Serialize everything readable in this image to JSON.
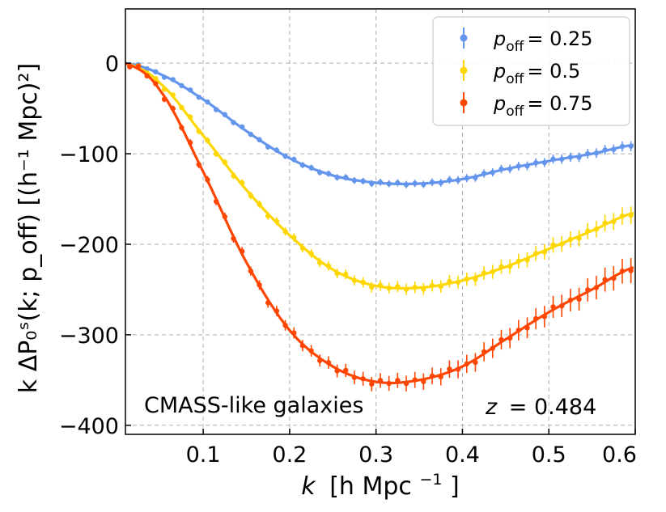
{
  "chart_data": {
    "type": "line",
    "xlabel_main": "k",
    "xlabel_unit": "[h Mpc",
    "xlabel_unit_sup": "−1",
    "xlabel_unit_end": "]",
    "ylabel": "k ΔP₀ˢ(k; p_off) [(h⁻¹ Mpc)²]",
    "xlim": [
      0.01,
      0.6
    ],
    "ylim": [
      -410,
      60
    ],
    "xticks": [
      0.1,
      0.2,
      0.3,
      0.4,
      0.5,
      0.6
    ],
    "xtick_labels": [
      "0.1",
      "0.2",
      "0.3",
      "0.4",
      "0.5",
      "0.6"
    ],
    "yticks": [
      0,
      -100,
      -200,
      -300,
      -400
    ],
    "ytick_labels": [
      "0",
      "−100",
      "−200",
      "−300",
      "−400"
    ],
    "grid": true,
    "legend_position": "top-right",
    "annotations": {
      "sample": "CMASS-like galaxies",
      "redshift_var": "z",
      "redshift_value": "= 0.484"
    },
    "series": [
      {
        "name": "p_off = 0.25",
        "legend_var": "p",
        "legend_sub": "off",
        "legend_value": "= 0.25",
        "color": "#6495ed",
        "x": [
          0.01,
          0.05,
          0.1,
          0.15,
          0.2,
          0.25,
          0.3,
          0.35,
          0.4,
          0.45,
          0.5,
          0.55,
          0.6
        ],
        "values": [
          0,
          -12,
          -40,
          -75,
          -105,
          -124,
          -132,
          -133,
          -128,
          -117,
          -108,
          -100,
          -90
        ]
      },
      {
        "name": "p_off = 0.5",
        "legend_var": "p",
        "legend_sub": "off",
        "legend_value": "= 0.5",
        "color": "#ffd700",
        "x": [
          0.01,
          0.05,
          0.1,
          0.15,
          0.2,
          0.25,
          0.3,
          0.35,
          0.4,
          0.45,
          0.5,
          0.55,
          0.6
        ],
        "values": [
          0,
          -22,
          -80,
          -140,
          -190,
          -228,
          -246,
          -248,
          -240,
          -225,
          -205,
          -185,
          -165
        ]
      },
      {
        "name": "p_off = 0.75",
        "legend_var": "p",
        "legend_sub": "off",
        "legend_value": "= 0.75",
        "color": "#ff4500",
        "x": [
          0.01,
          0.05,
          0.1,
          0.15,
          0.2,
          0.25,
          0.3,
          0.35,
          0.4,
          0.45,
          0.5,
          0.55,
          0.6
        ],
        "values": [
          0,
          -30,
          -120,
          -220,
          -295,
          -335,
          -352,
          -350,
          -335,
          -305,
          -275,
          -250,
          -225
        ]
      }
    ]
  }
}
